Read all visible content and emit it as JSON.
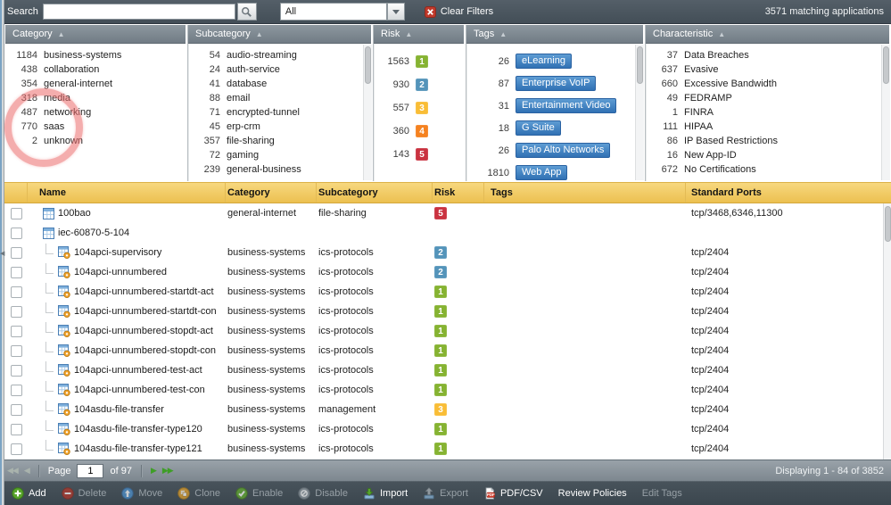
{
  "topbar": {
    "search_label": "Search",
    "search_value": "",
    "filter_dropdown_value": "All",
    "clear_filters_label": "Clear Filters",
    "matching_count_text": "3571 matching applications"
  },
  "filters": {
    "columns": [
      {
        "title": "Category",
        "sort": "asc",
        "scrollbar": false,
        "items": [
          {
            "count": "1184",
            "label": "business-systems"
          },
          {
            "count": "438",
            "label": "collaboration"
          },
          {
            "count": "354",
            "label": "general-internet"
          },
          {
            "count": "318",
            "label": "media"
          },
          {
            "count": "487",
            "label": "networking"
          },
          {
            "count": "770",
            "label": "saas"
          },
          {
            "count": "2",
            "label": "unknown"
          }
        ]
      },
      {
        "title": "Subcategory",
        "sort": "asc",
        "scrollbar": true,
        "items": [
          {
            "count": "54",
            "label": "audio-streaming"
          },
          {
            "count": "24",
            "label": "auth-service"
          },
          {
            "count": "41",
            "label": "database"
          },
          {
            "count": "88",
            "label": "email"
          },
          {
            "count": "71",
            "label": "encrypted-tunnel"
          },
          {
            "count": "45",
            "label": "erp-crm"
          },
          {
            "count": "357",
            "label": "file-sharing"
          },
          {
            "count": "72",
            "label": "gaming"
          },
          {
            "count": "239",
            "label": "general-business"
          }
        ]
      },
      {
        "title": "Risk",
        "sort": "asc",
        "scrollbar": false,
        "items": [
          {
            "count": "1563",
            "risk": "1"
          },
          {
            "count": "930",
            "risk": "2"
          },
          {
            "count": "557",
            "risk": "3"
          },
          {
            "count": "360",
            "risk": "4"
          },
          {
            "count": "143",
            "risk": "5"
          }
        ]
      },
      {
        "title": "Tags",
        "sort": "asc",
        "scrollbar": true,
        "items": [
          {
            "count": "26",
            "tag": "eLearning"
          },
          {
            "count": "87",
            "tag": "Enterprise VoIP"
          },
          {
            "count": "31",
            "tag": "Entertainment Video"
          },
          {
            "count": "18",
            "tag": "G Suite"
          },
          {
            "count": "26",
            "tag": "Palo Alto Networks"
          },
          {
            "count": "1810",
            "tag": "Web App"
          }
        ]
      },
      {
        "title": "Characteristic",
        "sort": "asc",
        "scrollbar": true,
        "items": [
          {
            "count": "37",
            "label": "Data Breaches"
          },
          {
            "count": "637",
            "label": "Evasive"
          },
          {
            "count": "660",
            "label": "Excessive Bandwidth"
          },
          {
            "count": "49",
            "label": "FEDRAMP"
          },
          {
            "count": "1",
            "label": "FINRA"
          },
          {
            "count": "111",
            "label": "HIPAA"
          },
          {
            "count": "86",
            "label": "IP Based Restrictions"
          },
          {
            "count": "16",
            "label": "New App-ID"
          },
          {
            "count": "672",
            "label": "No Certifications"
          }
        ]
      }
    ]
  },
  "risk_colors": {
    "1": "#86b332",
    "2": "#5494ba",
    "3": "#f9bd36",
    "4": "#f58220",
    "5": "#ca3240"
  },
  "tag_color": "#3d7fc0",
  "table": {
    "columns": [
      "Name",
      "Category",
      "Subcategory",
      "Risk",
      "Tags",
      "Standard Ports"
    ],
    "rows": [
      {
        "name": "100bao",
        "level": "parent",
        "category": "general-internet",
        "subcategory": "file-sharing",
        "risk": "5",
        "tags": "",
        "ports": "tcp/3468,6346,11300"
      },
      {
        "name": "iec-60870-5-104",
        "level": "parent",
        "category": "",
        "subcategory": "",
        "risk": "",
        "tags": "",
        "ports": ""
      },
      {
        "name": "104apci-supervisory",
        "level": "child",
        "category": "business-systems",
        "subcategory": "ics-protocols",
        "risk": "2",
        "tags": "",
        "ports": "tcp/2404"
      },
      {
        "name": "104apci-unnumbered",
        "level": "child",
        "category": "business-systems",
        "subcategory": "ics-protocols",
        "risk": "2",
        "tags": "",
        "ports": "tcp/2404"
      },
      {
        "name": "104apci-unnumbered-startdt-act",
        "level": "child",
        "category": "business-systems",
        "subcategory": "ics-protocols",
        "risk": "1",
        "tags": "",
        "ports": "tcp/2404"
      },
      {
        "name": "104apci-unnumbered-startdt-con",
        "level": "child",
        "category": "business-systems",
        "subcategory": "ics-protocols",
        "risk": "1",
        "tags": "",
        "ports": "tcp/2404"
      },
      {
        "name": "104apci-unnumbered-stopdt-act",
        "level": "child",
        "category": "business-systems",
        "subcategory": "ics-protocols",
        "risk": "1",
        "tags": "",
        "ports": "tcp/2404"
      },
      {
        "name": "104apci-unnumbered-stopdt-con",
        "level": "child",
        "category": "business-systems",
        "subcategory": "ics-protocols",
        "risk": "1",
        "tags": "",
        "ports": "tcp/2404"
      },
      {
        "name": "104apci-unnumbered-test-act",
        "level": "child",
        "category": "business-systems",
        "subcategory": "ics-protocols",
        "risk": "1",
        "tags": "",
        "ports": "tcp/2404"
      },
      {
        "name": "104apci-unnumbered-test-con",
        "level": "child",
        "category": "business-systems",
        "subcategory": "ics-protocols",
        "risk": "1",
        "tags": "",
        "ports": "tcp/2404"
      },
      {
        "name": "104asdu-file-transfer",
        "level": "child",
        "category": "business-systems",
        "subcategory": "management",
        "risk": "3",
        "tags": "",
        "ports": "tcp/2404"
      },
      {
        "name": "104asdu-file-transfer-type120",
        "level": "child",
        "category": "business-systems",
        "subcategory": "ics-protocols",
        "risk": "1",
        "tags": "",
        "ports": "tcp/2404"
      },
      {
        "name": "104asdu-file-transfer-type121",
        "level": "child",
        "category": "business-systems",
        "subcategory": "ics-protocols",
        "risk": "1",
        "tags": "",
        "ports": "tcp/2404"
      }
    ]
  },
  "pagination": {
    "page_label": "Page",
    "page_value": "1",
    "of_text": "of 97",
    "displaying_text": "Displaying 1 - 84 of 3852"
  },
  "toolbar": {
    "buttons": [
      {
        "label": "Add",
        "icon": "add",
        "enabled": true
      },
      {
        "label": "Delete",
        "icon": "delete",
        "enabled": false
      },
      {
        "label": "Move",
        "icon": "move",
        "enabled": false
      },
      {
        "label": "Clone",
        "icon": "clone",
        "enabled": false
      },
      {
        "label": "Enable",
        "icon": "enable",
        "enabled": false
      },
      {
        "label": "Disable",
        "icon": "disable",
        "enabled": false
      },
      {
        "label": "Import",
        "icon": "import",
        "enabled": true
      },
      {
        "label": "Export",
        "icon": "export",
        "enabled": false
      },
      {
        "label": "PDF/CSV",
        "icon": "pdf",
        "enabled": true
      },
      {
        "label": "Review Policies",
        "icon": "",
        "enabled": true
      },
      {
        "label": "Edit Tags",
        "icon": "",
        "enabled": false
      }
    ]
  }
}
